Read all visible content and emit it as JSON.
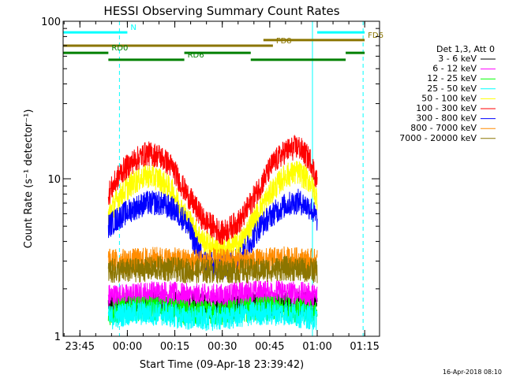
{
  "chart_data": {
    "type": "line",
    "title": "HESSI Observing Summary Count Rates",
    "xlabel": "Start Time (09-Apr-18 23:39:42)",
    "ylabel": "Count Rate (s⁻¹ detector⁻¹)",
    "ylog": true,
    "ylim": [
      1,
      100
    ],
    "xlim": [
      "23:39:42",
      "01:19:42"
    ],
    "x_ticks": [
      "23:45",
      "00:00",
      "00:15",
      "00:30",
      "00:45",
      "01:00",
      "01:15"
    ],
    "y_ticks": [
      "1",
      "10",
      "100"
    ],
    "grid": false,
    "legend_position": "right",
    "legend_title": "Det 1,3, Att 0",
    "timestamp": "16-Apr-2018 08:10",
    "series": [
      {
        "name": "3 - 6 keV",
        "color": "#000000",
        "x": [
          "23:54",
          "00:00",
          "00:10",
          "00:20",
          "00:30",
          "00:40",
          "00:50",
          "01:00"
        ],
        "values": [
          1.6,
          1.6,
          1.6,
          1.6,
          1.5,
          1.6,
          1.6,
          1.6
        ]
      },
      {
        "name": "6 - 12 keV",
        "color": "#ff00ff",
        "x": [
          "23:54",
          "00:00",
          "00:10",
          "00:20",
          "00:30",
          "00:40",
          "00:50",
          "01:00"
        ],
        "values": [
          1.8,
          1.8,
          1.9,
          1.8,
          1.8,
          1.9,
          1.9,
          1.8
        ]
      },
      {
        "name": "12 - 25 keV",
        "color": "#00ff00",
        "x": [
          "23:54",
          "00:00",
          "00:10",
          "00:20",
          "00:30",
          "00:40",
          "00:50",
          "01:00"
        ],
        "values": [
          1.4,
          1.5,
          1.5,
          1.4,
          1.4,
          1.5,
          1.5,
          1.4
        ]
      },
      {
        "name": "25 - 50 keV",
        "color": "#00ffff",
        "x": [
          "23:54",
          "00:00",
          "00:10",
          "00:20",
          "00:30",
          "00:40",
          "00:50",
          "01:00"
        ],
        "values": [
          1.3,
          1.4,
          1.4,
          1.3,
          1.3,
          1.4,
          1.4,
          1.3
        ]
      },
      {
        "name": "50 - 100 keV",
        "color": "#ffff00",
        "x": [
          "23:54",
          "23:58",
          "00:02",
          "00:06",
          "00:10",
          "00:14",
          "00:18",
          "00:24",
          "00:30",
          "00:36",
          "00:42",
          "00:46",
          "00:50",
          "00:54",
          "00:58",
          "01:00"
        ],
        "values": [
          6.0,
          8.0,
          9.5,
          10.5,
          10.0,
          8.5,
          6.0,
          4.0,
          3.5,
          4.0,
          6.5,
          8.5,
          10.5,
          11.0,
          9.5,
          7.5
        ]
      },
      {
        "name": "100 - 300 keV",
        "color": "#ff0000",
        "x": [
          "23:54",
          "23:58",
          "00:02",
          "00:06",
          "00:10",
          "00:14",
          "00:18",
          "00:24",
          "00:30",
          "00:36",
          "00:42",
          "00:46",
          "00:50",
          "00:54",
          "00:58",
          "01:00"
        ],
        "values": [
          8.0,
          11.0,
          13.0,
          14.5,
          14.0,
          12.0,
          8.5,
          5.5,
          4.5,
          5.5,
          9.0,
          12.5,
          15.0,
          16.0,
          13.0,
          9.5
        ]
      },
      {
        "name": "300 - 800 keV",
        "color": "#0000ff",
        "x": [
          "23:54",
          "23:58",
          "00:02",
          "00:06",
          "00:10",
          "00:14",
          "00:18",
          "00:24",
          "00:30",
          "00:36",
          "00:42",
          "00:46",
          "00:50",
          "00:54",
          "00:58",
          "01:00"
        ],
        "values": [
          5.0,
          5.8,
          6.5,
          7.0,
          7.0,
          6.5,
          5.5,
          3.0,
          2.7,
          3.2,
          5.0,
          6.0,
          6.8,
          7.2,
          6.5,
          5.5
        ]
      },
      {
        "name": "800 - 7000 keV",
        "color": "#ff8c00",
        "x": [
          "23:54",
          "00:00",
          "00:10",
          "00:20",
          "00:30",
          "00:40",
          "00:50",
          "01:00"
        ],
        "values": [
          3.0,
          3.0,
          3.1,
          3.0,
          3.0,
          3.0,
          3.1,
          3.0
        ]
      },
      {
        "name": "7000 - 20000 keV",
        "color": "#8b7500",
        "x": [
          "23:54",
          "00:00",
          "00:10",
          "00:20",
          "00:30",
          "00:40",
          "00:50",
          "01:00"
        ],
        "values": [
          2.6,
          2.6,
          2.7,
          2.6,
          2.6,
          2.6,
          2.7,
          2.6
        ]
      }
    ],
    "flag_bars": [
      {
        "label": "N",
        "color": "#00ffff",
        "level": 85,
        "segments": [
          [
            "23:39:42",
            "00:00"
          ],
          [
            "01:00",
            "01:15"
          ]
        ]
      },
      {
        "label": "FD6",
        "color": "#8b7500",
        "level": 76,
        "segments": [
          [
            "00:43",
            "01:15"
          ]
        ]
      },
      {
        "label": "FD8",
        "color": "#8b7500",
        "level": 70,
        "segments": [
          [
            "23:39:42",
            "00:46"
          ]
        ]
      },
      {
        "label": "RD0",
        "color": "#008000",
        "level": 63,
        "segments": [
          [
            "23:39:42",
            "23:54"
          ],
          [
            "00:18",
            "00:39"
          ],
          [
            "01:09",
            "01:15"
          ]
        ]
      },
      {
        "label": "RD6",
        "color": "#008000",
        "level": 57,
        "segments": [
          [
            "23:54",
            "00:18"
          ],
          [
            "00:39",
            "01:09"
          ]
        ]
      }
    ],
    "vertical_markers": [
      {
        "color": "#00ffff",
        "style": "dashed",
        "x": "23:57:30"
      },
      {
        "color": "#00ffff",
        "style": "solid",
        "x": "00:58:30"
      },
      {
        "color": "#00ffff",
        "style": "dashed",
        "x": "01:14:30"
      },
      {
        "color": "#00ffff",
        "style": "solid",
        "x": "23:39:42"
      }
    ]
  }
}
